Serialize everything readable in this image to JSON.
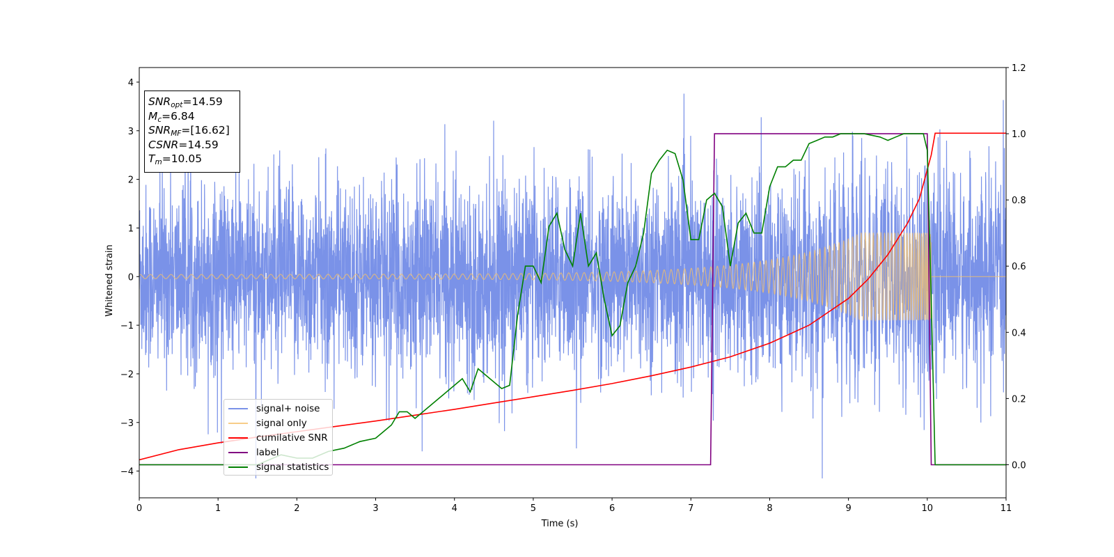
{
  "chart_data": {
    "type": "line",
    "xlabel": "Time (s)",
    "ylabel": "Whitened strain",
    "xlim": [
      0,
      11
    ],
    "ylim": [
      -4.55,
      4.3
    ],
    "y2lim": [
      -0.1,
      1.2
    ],
    "x_ticks": [
      0,
      1,
      2,
      3,
      4,
      5,
      6,
      7,
      8,
      9,
      10,
      11
    ],
    "y_ticks": [
      -4,
      -3,
      -2,
      -1,
      0,
      1,
      2,
      3,
      4
    ],
    "y2_ticks": [
      0.0,
      0.2,
      0.4,
      0.6,
      0.8,
      1.0,
      1.2
    ],
    "grid": false,
    "legend_position": "lower-left",
    "annotation": {
      "snr_opt": {
        "label": "SNR",
        "sub": "opt",
        "value": "=14.59"
      },
      "mc": {
        "label": "M",
        "sub": "c",
        "value": "=6.84"
      },
      "snr_mf": {
        "label": "SNR",
        "sub": "MF",
        "value": "=[16.62]"
      },
      "csnr": {
        "label": "CSNR",
        "sub": "",
        "value": "=14.59"
      },
      "tm": {
        "label": "T",
        "sub": "m",
        "value": "=10.05"
      }
    },
    "series": [
      {
        "name": "signal+ noise",
        "color": "#6b86e6",
        "axis": "left",
        "description": "noise band",
        "envelope": {
          "min": -4.15,
          "max": 3.9,
          "typical_abs": 2.2
        }
      },
      {
        "name": "signal only",
        "color": "#f5c06a",
        "axis": "left",
        "description": "chirp",
        "amplitude_start": 0.06,
        "amplitude_peak": 0.9,
        "t_merger": 10.05
      },
      {
        "name": "cumilative SNR",
        "color": "#ff0000",
        "axis": "left",
        "x": [
          0,
          0.5,
          1,
          1.5,
          2,
          2.5,
          3,
          3.5,
          4,
          4.5,
          5,
          5.5,
          6,
          6.5,
          7,
          7.5,
          8,
          8.5,
          9,
          9.25,
          9.5,
          9.75,
          9.9,
          10.05,
          10.1,
          11
        ],
        "y": [
          -3.77,
          -3.56,
          -3.42,
          -3.3,
          -3.19,
          -3.08,
          -2.97,
          -2.85,
          -2.73,
          -2.6,
          -2.47,
          -2.34,
          -2.2,
          -2.04,
          -1.86,
          -1.65,
          -1.37,
          -1.0,
          -0.45,
          -0.05,
          0.45,
          1.1,
          1.6,
          2.5,
          2.95,
          2.95
        ]
      },
      {
        "name": "label",
        "color": "#800080",
        "axis": "right",
        "x": [
          0,
          7.25,
          7.3,
          10.0,
          10.05,
          11
        ],
        "y": [
          0,
          0,
          1,
          1,
          0,
          0
        ]
      },
      {
        "name": "signal statistics",
        "color": "#008000",
        "axis": "right",
        "x": [
          0,
          0.5,
          1,
          1.5,
          1.8,
          2,
          2.2,
          2.4,
          2.6,
          2.8,
          3.0,
          3.1,
          3.2,
          3.3,
          3.4,
          3.5,
          3.6,
          3.7,
          3.8,
          3.9,
          4.0,
          4.1,
          4.2,
          4.3,
          4.4,
          4.5,
          4.6,
          4.7,
          4.8,
          4.9,
          5.0,
          5.1,
          5.2,
          5.3,
          5.4,
          5.5,
          5.6,
          5.7,
          5.8,
          5.9,
          6.0,
          6.1,
          6.2,
          6.3,
          6.4,
          6.5,
          6.6,
          6.7,
          6.8,
          6.9,
          7.0,
          7.1,
          7.2,
          7.3,
          7.4,
          7.5,
          7.6,
          7.7,
          7.8,
          7.9,
          8.0,
          8.1,
          8.2,
          8.3,
          8.4,
          8.5,
          8.6,
          8.7,
          8.8,
          8.9,
          9.0,
          9.2,
          9.4,
          9.5,
          9.6,
          9.7,
          9.8,
          9.9,
          9.95,
          10.0,
          10.05,
          10.1,
          11
        ],
        "y": [
          0.0,
          0.0,
          0.0,
          0.0,
          0.03,
          0.02,
          0.02,
          0.04,
          0.05,
          0.07,
          0.08,
          0.1,
          0.12,
          0.16,
          0.16,
          0.14,
          0.16,
          0.18,
          0.2,
          0.22,
          0.24,
          0.26,
          0.22,
          0.29,
          0.27,
          0.25,
          0.23,
          0.24,
          0.45,
          0.6,
          0.6,
          0.55,
          0.72,
          0.76,
          0.65,
          0.6,
          0.76,
          0.6,
          0.64,
          0.5,
          0.39,
          0.42,
          0.55,
          0.6,
          0.7,
          0.88,
          0.92,
          0.95,
          0.94,
          0.86,
          0.68,
          0.68,
          0.8,
          0.82,
          0.78,
          0.6,
          0.73,
          0.76,
          0.7,
          0.7,
          0.84,
          0.9,
          0.9,
          0.92,
          0.92,
          0.97,
          0.98,
          0.99,
          0.99,
          1.0,
          1.0,
          1.0,
          0.99,
          0.98,
          0.99,
          1.0,
          1.0,
          1.0,
          1.0,
          0.95,
          0.5,
          0.0,
          0.0
        ]
      }
    ]
  }
}
